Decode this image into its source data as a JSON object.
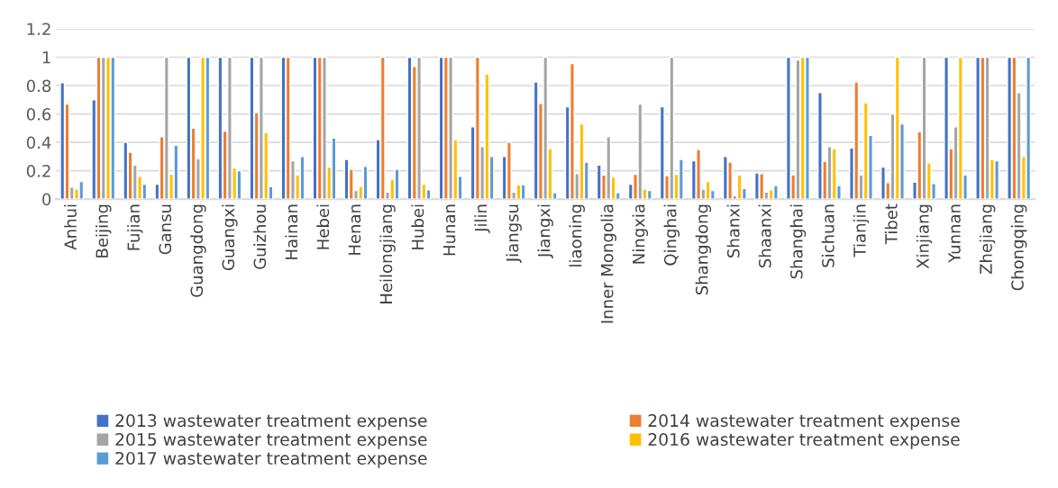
{
  "chart_data": {
    "type": "bar",
    "categories": [
      "Anhui",
      "Beijing",
      "Fujian",
      "Gansu",
      "Guangdong",
      "Guangxi",
      "Guizhou",
      "Hainan",
      "Hebei",
      "Henan",
      "Heilongjiang",
      "Hubei",
      "Hunan",
      "Jilin",
      "Jiangsu",
      "Jiangxi",
      "liaoning",
      "Inner Mongolia",
      "Ningxia",
      "Qinghai",
      "Shangdong",
      "Shanxi",
      "Shaanxi",
      "Shanghai",
      "Sichuan",
      "Tianjin",
      "Tibet",
      "Xinjiang",
      "Yunnan",
      "Zhejiang",
      "Chongqing"
    ],
    "series": [
      {
        "name": "2013 wastewater treatment expense",
        "color": "#4472c4",
        "values": [
          0.82,
          0.7,
          0.4,
          0.105,
          1,
          1,
          1,
          1,
          1,
          0.28,
          0.42,
          1,
          1,
          0.51,
          0.3,
          0.825,
          0.65,
          0.24,
          0.105,
          0.65,
          0.27,
          0.3,
          0.185,
          1,
          0.75,
          0.36,
          0.225,
          0.12,
          1,
          1,
          1
        ]
      },
      {
        "name": "2014 wastewater treatment expense",
        "color": "#ed7d31",
        "values": [
          0.67,
          1,
          0.33,
          0.44,
          0.5,
          0.48,
          0.61,
          1,
          1,
          0.21,
          1,
          0.935,
          1,
          1,
          0.4,
          0.675,
          0.955,
          0.17,
          0.175,
          0.165,
          0.35,
          0.26,
          0.18,
          0.17,
          0.265,
          0.825,
          0.117,
          0.475,
          0.355,
          1,
          1
        ]
      },
      {
        "name": "2015 wastewater treatment expense",
        "color": "#a5a5a5",
        "values": [
          0.085,
          1,
          0.24,
          1,
          0.285,
          1,
          1,
          0.27,
          1,
          0.06,
          0.05,
          1,
          1,
          0.37,
          0.05,
          1,
          0.18,
          0.44,
          0.67,
          1,
          0.07,
          0.025,
          0.05,
          0.98,
          0.37,
          0.17,
          0.6,
          1,
          0.51,
          1,
          0.75
        ]
      },
      {
        "name": "2016 wastewater treatment expense",
        "color": "#ffc000",
        "values": [
          0.07,
          1,
          0.16,
          0.175,
          1,
          0.22,
          0.47,
          0.17,
          0.225,
          0.09,
          0.14,
          0.105,
          0.42,
          0.88,
          0.1,
          0.355,
          0.53,
          0.155,
          0.07,
          0.175,
          0.125,
          0.17,
          0.065,
          1,
          0.355,
          0.68,
          1,
          0.255,
          1,
          0.28,
          0.3
        ]
      },
      {
        "name": "2017 wastewater treatment expense",
        "color": "#5b9bd5",
        "values": [
          0.125,
          1,
          0.105,
          0.38,
          1,
          0.2,
          0.087,
          0.3,
          0.43,
          0.23,
          0.21,
          0.065,
          0.16,
          0.3,
          0.1,
          0.045,
          0.26,
          0.045,
          0.06,
          0.28,
          0.06,
          0.075,
          0.095,
          1,
          0.095,
          0.45,
          0.53,
          0.11,
          0.17,
          0.27,
          1
        ]
      }
    ],
    "ylim": [
      0,
      1.2
    ],
    "yticks": [
      0,
      0.2,
      0.4,
      0.6,
      0.8,
      1,
      1.2
    ],
    "grid": "y",
    "legend": "bottom"
  }
}
